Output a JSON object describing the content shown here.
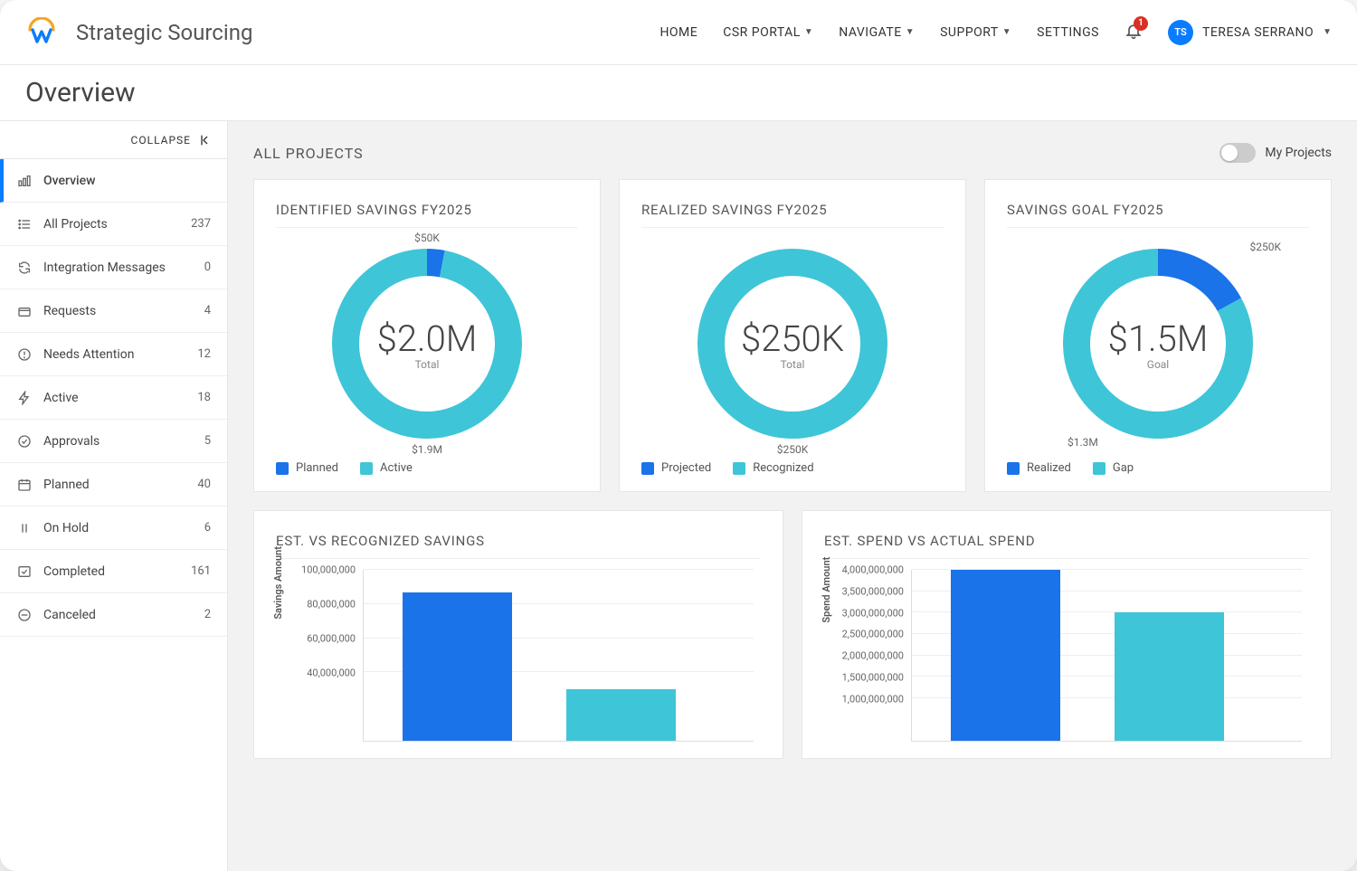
{
  "header": {
    "app_title": "Strategic Sourcing",
    "nav": [
      {
        "label": "HOME",
        "dropdown": false
      },
      {
        "label": "CSR PORTAL",
        "dropdown": true
      },
      {
        "label": "NAVIGATE",
        "dropdown": true
      },
      {
        "label": "SUPPORT",
        "dropdown": true
      },
      {
        "label": "SETTINGS",
        "dropdown": false
      }
    ],
    "notification_count": "1",
    "user_initials": "TS",
    "user_name": "TERESA SERRANO"
  },
  "page_title": "Overview",
  "sidebar": {
    "collapse_label": "COLLAPSE",
    "items": [
      {
        "icon": "bars-icon",
        "label": "Overview",
        "count": "",
        "active": true
      },
      {
        "icon": "list-icon",
        "label": "All Projects",
        "count": "237"
      },
      {
        "icon": "refresh-icon",
        "label": "Integration Messages",
        "count": "0"
      },
      {
        "icon": "inbox-icon",
        "label": "Requests",
        "count": "4"
      },
      {
        "icon": "alert-icon",
        "label": "Needs Attention",
        "count": "12"
      },
      {
        "icon": "bolt-icon",
        "label": "Active",
        "count": "18"
      },
      {
        "icon": "check-icon",
        "label": "Approvals",
        "count": "5"
      },
      {
        "icon": "calendar-icon",
        "label": "Planned",
        "count": "40"
      },
      {
        "icon": "pause-icon",
        "label": "On Hold",
        "count": "6"
      },
      {
        "icon": "done-icon",
        "label": "Completed",
        "count": "161"
      },
      {
        "icon": "cancel-icon",
        "label": "Canceled",
        "count": "2"
      }
    ]
  },
  "main": {
    "section_title": "ALL PROJECTS",
    "toggle_label": "My Projects",
    "colors": {
      "primary_blue": "#1a73e8",
      "primary_cyan": "#3fc5d8",
      "grid": "#eeeeee",
      "axis": "#dddddd",
      "text": "#555555",
      "card_bg": "#ffffff",
      "body_bg": "#f2f2f2"
    },
    "donuts": [
      {
        "title": "IDENTIFIED SAVINGS FY2025",
        "center_value": "$2.0M",
        "center_sub": "Total",
        "segments": [
          {
            "label": "Planned",
            "color": "#1a73e8",
            "value_pct": 3,
            "callout": "$50K",
            "callout_pos": "top"
          },
          {
            "label": "Active",
            "color": "#3fc5d8",
            "value_pct": 97,
            "callout": "$1.9M",
            "callout_pos": "bottom"
          }
        ],
        "stroke_width": 30,
        "radius": 90
      },
      {
        "title": "REALIZED SAVINGS FY2025",
        "center_value": "$250K",
        "center_sub": "Total",
        "segments": [
          {
            "label": "Projected",
            "color": "#1a73e8",
            "value_pct": 0,
            "callout": "",
            "callout_pos": ""
          },
          {
            "label": "Recognized",
            "color": "#3fc5d8",
            "value_pct": 100,
            "callout": "$250K",
            "callout_pos": "bottom"
          }
        ],
        "stroke_width": 30,
        "radius": 90
      },
      {
        "title": "SAVINGS GOAL FY2025",
        "center_value": "$1.5M",
        "center_sub": "Goal",
        "segments": [
          {
            "label": "Realized",
            "color": "#1a73e8",
            "value_pct": 17,
            "callout": "$250K",
            "callout_pos": "topright"
          },
          {
            "label": "Gap",
            "color": "#3fc5d8",
            "value_pct": 83,
            "callout": "$1.3M",
            "callout_pos": "bottomleft"
          }
        ],
        "stroke_width": 30,
        "radius": 90
      }
    ],
    "bars": [
      {
        "title": "EST. VS RECOGNIZED SAVINGS",
        "y_label": "Savings Amount",
        "y_max": 100000000,
        "y_ticks": [
          "100,000,000",
          "80,000,000",
          "60,000,000",
          "40,000,000"
        ],
        "y_tick_values": [
          100000000,
          80000000,
          60000000,
          40000000
        ],
        "bars": [
          {
            "color": "#1a73e8",
            "value": 87000000
          },
          {
            "color": "#3fc5d8",
            "value": 30000000
          }
        ]
      },
      {
        "title": "EST. SPEND VS ACTUAL SPEND",
        "y_label": "Spend Amount",
        "y_max": 4000000000,
        "y_ticks": [
          "4,000,000,000",
          "3,500,000,000",
          "3,000,000,000",
          "2,500,000,000",
          "2,000,000,000",
          "1,500,000,000",
          "1,000,000,000"
        ],
        "y_tick_values": [
          4000000000,
          3500000000,
          3000000000,
          2500000000,
          2000000000,
          1500000000,
          1000000000
        ],
        "bars": [
          {
            "color": "#1a73e8",
            "value": 4050000000
          },
          {
            "color": "#3fc5d8",
            "value": 3000000000
          }
        ]
      }
    ]
  }
}
